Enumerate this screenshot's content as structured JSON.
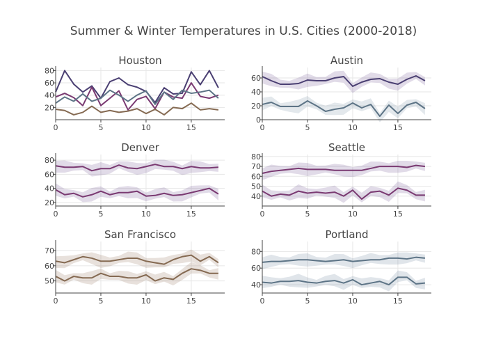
{
  "title": "Summer & Winter Temperatures in U.S. Cities (2000-2018)",
  "colors": {
    "dark_purple": "#4a3f72",
    "purple": "#7a3a72",
    "slate": "#5d7486",
    "brown": "#856a52",
    "band_purple": "rgba(120,90,150,0.22)",
    "band_brown": "rgba(150,120,95,0.22)",
    "band_slate": "rgba(100,125,150,0.20)",
    "grid": "#e6e6e6",
    "axis": "#444444"
  },
  "chart_data": [
    {
      "type": "line",
      "title": "Houston",
      "x": [
        0,
        1,
        2,
        3,
        4,
        5,
        6,
        7,
        8,
        9,
        10,
        11,
        12,
        13,
        14,
        15,
        16,
        17,
        18
      ],
      "ylim": [
        0,
        85
      ],
      "yticks": [
        20,
        40,
        60,
        80
      ],
      "xticks": [
        0,
        5,
        10,
        15
      ],
      "bands": false,
      "series": [
        {
          "color": "#4a3f72",
          "values": [
            45,
            80,
            58,
            45,
            55,
            35,
            62,
            68,
            57,
            53,
            46,
            28,
            52,
            42,
            43,
            78,
            57,
            80,
            52
          ]
        },
        {
          "color": "#7a3a72",
          "values": [
            37,
            43,
            36,
            23,
            53,
            23,
            35,
            47,
            16,
            33,
            38,
            18,
            45,
            37,
            35,
            60,
            38,
            35,
            40
          ]
        },
        {
          "color": "#5d7486",
          "values": [
            27,
            37,
            30,
            42,
            30,
            35,
            48,
            40,
            30,
            40,
            47,
            25,
            45,
            33,
            48,
            43,
            45,
            48,
            35
          ]
        },
        {
          "color": "#856a52",
          "values": [
            17,
            15,
            8,
            12,
            22,
            12,
            15,
            12,
            14,
            18,
            10,
            17,
            8,
            20,
            18,
            27,
            16,
            18,
            16
          ]
        }
      ]
    },
    {
      "type": "line",
      "title": "Austin",
      "x": [
        0,
        1,
        2,
        3,
        4,
        5,
        6,
        7,
        8,
        9,
        10,
        11,
        12,
        13,
        14,
        15,
        16,
        17,
        18
      ],
      "ylim": [
        0,
        75
      ],
      "yticks": [
        0,
        20,
        40,
        60
      ],
      "xticks": [
        0,
        5,
        10,
        15
      ],
      "bands": true,
      "series": [
        {
          "color": "#4a3f72",
          "band": "rgba(120,90,150,0.22)",
          "values": [
            62,
            56,
            51,
            51,
            52,
            57,
            56,
            56,
            60,
            62,
            48,
            54,
            58,
            59,
            54,
            51,
            58,
            63,
            56
          ]
        },
        {
          "color": "#5d7486",
          "band": "rgba(100,125,150,0.18)",
          "values": [
            22,
            25,
            19,
            19,
            19,
            27,
            20,
            12,
            15,
            17,
            24,
            17,
            22,
            5,
            21,
            9,
            21,
            25,
            16
          ]
        }
      ]
    },
    {
      "type": "line",
      "title": "Denver",
      "x": [
        0,
        1,
        2,
        3,
        4,
        5,
        6,
        7,
        8,
        9,
        10,
        11,
        12,
        13,
        14,
        15,
        16,
        17,
        18
      ],
      "ylim": [
        15,
        88
      ],
      "yticks": [
        20,
        40,
        60,
        80
      ],
      "xticks": [
        0,
        5,
        10,
        15
      ],
      "bands": true,
      "series": [
        {
          "color": "#7a3a72",
          "band": "rgba(120,90,150,0.22)",
          "values": [
            72,
            70,
            70,
            71,
            65,
            68,
            68,
            73,
            69,
            68,
            71,
            74,
            71,
            71,
            68,
            71,
            69,
            69,
            70
          ]
        },
        {
          "color": "#7a3a72",
          "band": "rgba(120,90,150,0.22)",
          "values": [
            38,
            31,
            33,
            28,
            31,
            36,
            31,
            34,
            34,
            36,
            29,
            30,
            33,
            30,
            31,
            34,
            37,
            40,
            32
          ]
        }
      ]
    },
    {
      "type": "line",
      "title": "Seattle",
      "x": [
        0,
        1,
        2,
        3,
        4,
        5,
        6,
        7,
        8,
        9,
        10,
        11,
        12,
        13,
        14,
        15,
        16,
        17,
        18
      ],
      "ylim": [
        30,
        82
      ],
      "yticks": [
        40,
        50,
        60,
        70,
        80
      ],
      "xticks": [
        0,
        5,
        10,
        15
      ],
      "bands": true,
      "series": [
        {
          "color": "#7a3a72",
          "band": "rgba(120,90,150,0.22)",
          "values": [
            63,
            65,
            66,
            67,
            68,
            67,
            67,
            67,
            66,
            66,
            66,
            66,
            68,
            70,
            70,
            70,
            69,
            71,
            70
          ]
        },
        {
          "color": "#7a3a72",
          "band": "rgba(120,90,150,0.22)",
          "values": [
            45,
            40,
            42,
            41,
            45,
            43,
            44,
            43,
            44,
            40,
            46,
            37,
            44,
            45,
            41,
            48,
            46,
            41,
            41
          ]
        }
      ]
    },
    {
      "type": "line",
      "title": "San Francisco",
      "x": [
        0,
        1,
        2,
        3,
        4,
        5,
        6,
        7,
        8,
        9,
        10,
        11,
        12,
        13,
        14,
        15,
        16,
        17,
        18
      ],
      "ylim": [
        42,
        76
      ],
      "yticks": [
        50,
        60,
        70
      ],
      "xticks": [
        0,
        5,
        10,
        15
      ],
      "bands": true,
      "series": [
        {
          "color": "#856a52",
          "band": "rgba(150,120,95,0.22)",
          "values": [
            63,
            62,
            64,
            66,
            65,
            63,
            63,
            64,
            65,
            65,
            63,
            62,
            61,
            64,
            66,
            67,
            63,
            66,
            62
          ]
        },
        {
          "color": "#856a52",
          "band": "rgba(150,120,95,0.22)",
          "values": [
            53,
            50,
            53,
            52,
            52,
            55,
            53,
            53,
            52,
            52,
            54,
            50,
            52,
            51,
            55,
            58,
            57,
            55,
            55
          ]
        }
      ]
    },
    {
      "type": "line",
      "title": "Portland",
      "x": [
        0,
        1,
        2,
        3,
        4,
        5,
        6,
        7,
        8,
        9,
        10,
        11,
        12,
        13,
        14,
        15,
        16,
        17,
        18
      ],
      "ylim": [
        30,
        92
      ],
      "yticks": [
        40,
        60,
        80
      ],
      "xticks": [
        0,
        5,
        10,
        15
      ],
      "bands": true,
      "series": [
        {
          "color": "#5d7486",
          "band": "rgba(100,125,150,0.20)",
          "values": [
            67,
            68,
            68,
            69,
            70,
            70,
            69,
            68,
            69,
            70,
            68,
            69,
            70,
            70,
            72,
            72,
            71,
            73,
            72
          ]
        },
        {
          "color": "#5d7486",
          "band": "rgba(100,125,150,0.20)",
          "values": [
            43,
            42,
            44,
            44,
            45,
            43,
            42,
            44,
            45,
            42,
            46,
            40,
            42,
            44,
            40,
            49,
            49,
            41,
            42
          ]
        }
      ]
    }
  ]
}
